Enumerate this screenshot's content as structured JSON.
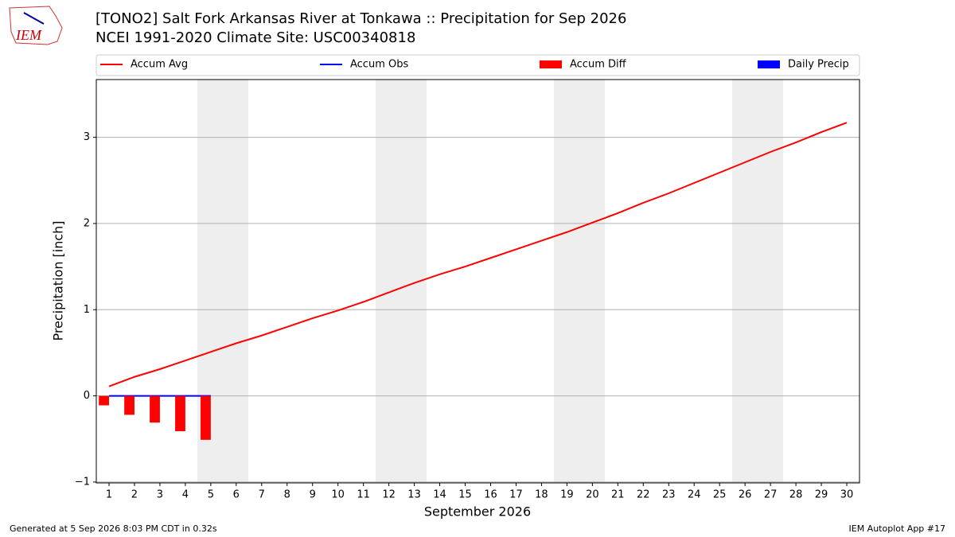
{
  "chart_data": {
    "type": "line",
    "title": "[TONO2] Salt Fork Arkansas River at Tonkawa :: Precipitation for Sep 2026",
    "subtitle": "NCEI 1991-2020 Climate Site: USC00340818",
    "xlabel": "September 2026",
    "ylabel": "Precipitation [inch]",
    "logo": "IEM",
    "footer_left": "Generated at 5 Sep 2026 8:03 PM CDT in 0.32s",
    "footer_right": "IEM Autoplot App #17",
    "x": [
      1,
      2,
      3,
      4,
      5,
      6,
      7,
      8,
      9,
      10,
      11,
      12,
      13,
      14,
      15,
      16,
      17,
      18,
      19,
      20,
      21,
      22,
      23,
      24,
      25,
      26,
      27,
      28,
      29,
      30
    ],
    "xlim": [
      0.5,
      30.5
    ],
    "xticks": [
      1,
      2,
      3,
      4,
      5,
      6,
      7,
      8,
      9,
      10,
      11,
      12,
      13,
      14,
      15,
      16,
      17,
      18,
      19,
      20,
      21,
      22,
      23,
      24,
      25,
      26,
      27,
      28,
      29,
      30
    ],
    "ylim": [
      -1.01,
      3.67
    ],
    "yticks": [
      {
        "value": -1,
        "label": "−1"
      },
      0,
      1,
      2,
      3
    ],
    "grid": true,
    "legend": "top",
    "series": [
      {
        "name": "Accum Avg",
        "color": "#ff0000",
        "mark": "line",
        "values": [
          0.11,
          0.22,
          0.31,
          0.41,
          0.51,
          0.61,
          0.7,
          0.8,
          0.9,
          0.99,
          1.09,
          1.2,
          1.31,
          1.41,
          1.5,
          1.6,
          1.7,
          1.8,
          1.9,
          2.01,
          2.12,
          2.24,
          2.35,
          2.47,
          2.59,
          2.71,
          2.83,
          2.94,
          3.06,
          3.17
        ]
      },
      {
        "name": "Accum Obs",
        "color": "#0000ff",
        "mark": "line",
        "values": [
          0,
          0,
          0,
          0,
          0,
          null,
          null,
          null,
          null,
          null,
          null,
          null,
          null,
          null,
          null,
          null,
          null,
          null,
          null,
          null,
          null,
          null,
          null,
          null,
          null,
          null,
          null,
          null,
          null,
          null
        ]
      },
      {
        "name": "Accum Diff",
        "color": "#ff0000",
        "mark": "bar",
        "values": [
          -0.11,
          -0.22,
          -0.31,
          -0.41,
          -0.51,
          null,
          null,
          null,
          null,
          null,
          null,
          null,
          null,
          null,
          null,
          null,
          null,
          null,
          null,
          null,
          null,
          null,
          null,
          null,
          null,
          null,
          null,
          null,
          null,
          null
        ]
      },
      {
        "name": "Daily Precip",
        "color": "#0000ff",
        "mark": "bar",
        "values": [
          0,
          0,
          0,
          0,
          0,
          null,
          null,
          null,
          null,
          null,
          null,
          null,
          null,
          null,
          null,
          null,
          null,
          null,
          null,
          null,
          null,
          null,
          null,
          null,
          null,
          null,
          null,
          null,
          null,
          null
        ]
      }
    ]
  }
}
